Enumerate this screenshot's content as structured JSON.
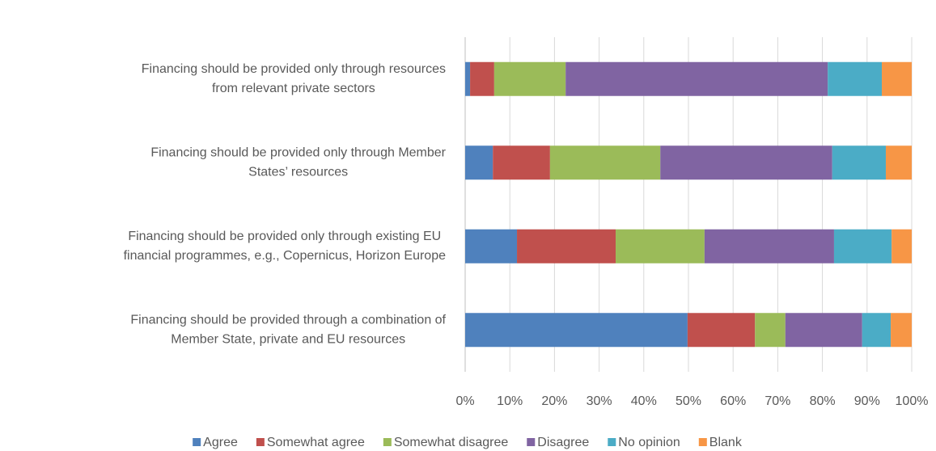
{
  "chart_data": {
    "type": "stacked_bar_horizontal",
    "categories": [
      [
        "Financing should be provided only through resources",
        "from relevant private sectors"
      ],
      [
        "Financing should be provided only through Member",
        "States’ resources"
      ],
      [
        "Financing should be provided only through existing EU",
        "financial programmes, e.g., Copernicus, Horizon Europe"
      ],
      [
        "Financing should be provided through a combination of",
        "Member State, private and EU resources"
      ]
    ],
    "series": [
      {
        "name": "Agree",
        "color": "#4f81bd",
        "values": [
          1.1,
          6.2,
          11.6,
          49.8
        ]
      },
      {
        "name": "Somewhat agree",
        "color": "#c0504d",
        "values": [
          5.4,
          12.8,
          22.1,
          15.1
        ]
      },
      {
        "name": "Somewhat disagree",
        "color": "#9bbb59",
        "values": [
          16.0,
          24.7,
          19.9,
          6.8
        ]
      },
      {
        "name": "Disagree",
        "color": "#8064a2",
        "values": [
          58.7,
          38.5,
          29.0,
          17.2
        ]
      },
      {
        "name": "No opinion",
        "color": "#4bacc6",
        "values": [
          12.1,
          12.0,
          12.9,
          6.4
        ]
      },
      {
        "name": "Blank",
        "color": "#f79646",
        "values": [
          6.7,
          5.8,
          4.5,
          4.7
        ]
      }
    ],
    "xlim": [
      0,
      100
    ],
    "xticks": [
      {
        "value": 0,
        "label": "0%"
      },
      {
        "value": 10,
        "label": "10%"
      },
      {
        "value": 20,
        "label": "20%"
      },
      {
        "value": 30,
        "label": "30%"
      },
      {
        "value": 40,
        "label": "40%"
      },
      {
        "value": 50,
        "label": "50%"
      },
      {
        "value": 60,
        "label": "60%"
      },
      {
        "value": 70,
        "label": "70%"
      },
      {
        "value": 80,
        "label": "80%"
      },
      {
        "value": 90,
        "label": "90%"
      },
      {
        "value": 100,
        "label": "100%"
      }
    ],
    "grid": true,
    "legend": "bottom"
  }
}
